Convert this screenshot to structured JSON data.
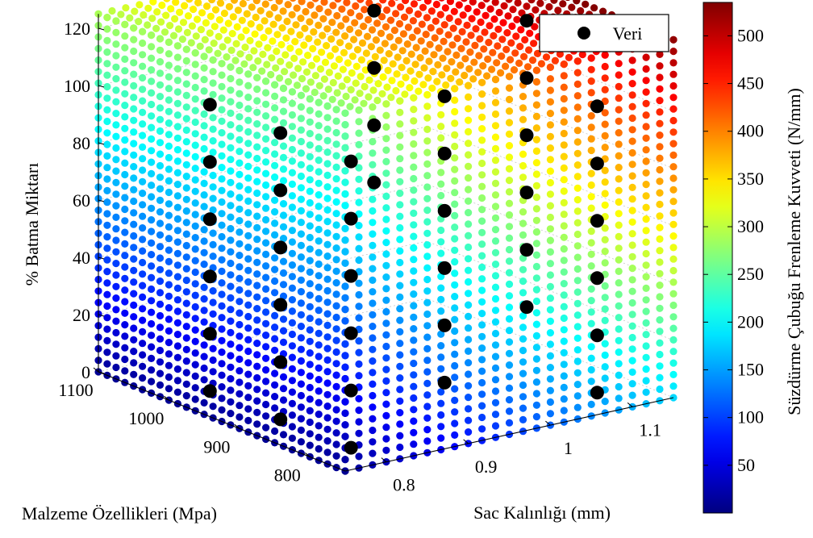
{
  "chart_data": {
    "type": "scatter",
    "subtype": "scatter3d",
    "title": "",
    "xlabel": "Sac Kalınlığı (mm)",
    "ylabel": "Malzeme Özellikleri (Mpa)",
    "zlabel": "% Batma Miktarı",
    "colorbar_label": "Süzdürme Çubuğu Frenleme Kuvveti (N/mm)",
    "colormap": "jet",
    "xlim": [
      0.75,
      1.15
    ],
    "ylim": [
      750,
      1100
    ],
    "zlim": [
      0,
      125
    ],
    "clim": [
      0,
      535
    ],
    "x_ticks": [
      "0.8",
      "0.9",
      "1",
      "1.1"
    ],
    "y_ticks": [
      "800",
      "900",
      "1000",
      "1100"
    ],
    "z_ticks": [
      "0",
      "20",
      "40",
      "60",
      "80",
      "100",
      "120"
    ],
    "colorbar_ticks": [
      "50",
      "100",
      "150",
      "200",
      "250",
      "300",
      "350",
      "400",
      "450",
      "500"
    ],
    "grid": true,
    "legend": {
      "position": "top-right",
      "entries": [
        "Veri"
      ]
    },
    "surface_description": "Gridded cube of points colored by predicted force; force increases with sheet thickness and penetration percentage, peaking near 530 N/mm at maximum thickness and penetration",
    "series": [
      {
        "name": "Veri",
        "color": "#000000",
        "points": [
          {
            "x": 0.8,
            "y": 800,
            "z": 0
          },
          {
            "x": 0.8,
            "y": 800,
            "z": 20
          },
          {
            "x": 0.8,
            "y": 800,
            "z": 40
          },
          {
            "x": 0.8,
            "y": 800,
            "z": 60
          },
          {
            "x": 0.8,
            "y": 800,
            "z": 80
          },
          {
            "x": 0.8,
            "y": 800,
            "z": 100
          },
          {
            "x": 0.8,
            "y": 1000,
            "z": 0
          },
          {
            "x": 0.8,
            "y": 1000,
            "z": 20
          },
          {
            "x": 0.8,
            "y": 1000,
            "z": 40
          },
          {
            "x": 0.8,
            "y": 1000,
            "z": 60
          },
          {
            "x": 0.8,
            "y": 1000,
            "z": 80
          },
          {
            "x": 0.8,
            "y": 1000,
            "z": 100
          },
          {
            "x": 0.8,
            "y": 900,
            "z": 0
          },
          {
            "x": 0.8,
            "y": 900,
            "z": 20
          },
          {
            "x": 0.8,
            "y": 900,
            "z": 40
          },
          {
            "x": 0.8,
            "y": 900,
            "z": 60
          },
          {
            "x": 0.8,
            "y": 900,
            "z": 80
          },
          {
            "x": 0.8,
            "y": 900,
            "z": 100
          },
          {
            "x": 1.0,
            "y": 900,
            "z": 0
          },
          {
            "x": 1.0,
            "y": 900,
            "z": 20
          },
          {
            "x": 1.0,
            "y": 900,
            "z": 40
          },
          {
            "x": 1.0,
            "y": 900,
            "z": 60
          },
          {
            "x": 1.0,
            "y": 900,
            "z": 80
          },
          {
            "x": 1.0,
            "y": 900,
            "z": 100
          },
          {
            "x": 1.0,
            "y": 1000,
            "z": 60
          },
          {
            "x": 1.0,
            "y": 1000,
            "z": 80
          },
          {
            "x": 1.0,
            "y": 1000,
            "z": 100
          },
          {
            "x": 1.0,
            "y": 1000,
            "z": 120
          },
          {
            "x": 1.1,
            "y": 900,
            "z": 20
          },
          {
            "x": 1.1,
            "y": 900,
            "z": 40
          },
          {
            "x": 1.1,
            "y": 900,
            "z": 60
          },
          {
            "x": 1.1,
            "y": 900,
            "z": 80
          },
          {
            "x": 1.1,
            "y": 900,
            "z": 100
          },
          {
            "x": 1.1,
            "y": 900,
            "z": 120
          },
          {
            "x": 1.1,
            "y": 800,
            "z": 0
          },
          {
            "x": 1.1,
            "y": 800,
            "z": 20
          },
          {
            "x": 1.1,
            "y": 800,
            "z": 40
          },
          {
            "x": 1.1,
            "y": 800,
            "z": 60
          },
          {
            "x": 1.1,
            "y": 800,
            "z": 80
          },
          {
            "x": 1.1,
            "y": 800,
            "z": 100
          }
        ]
      }
    ]
  }
}
